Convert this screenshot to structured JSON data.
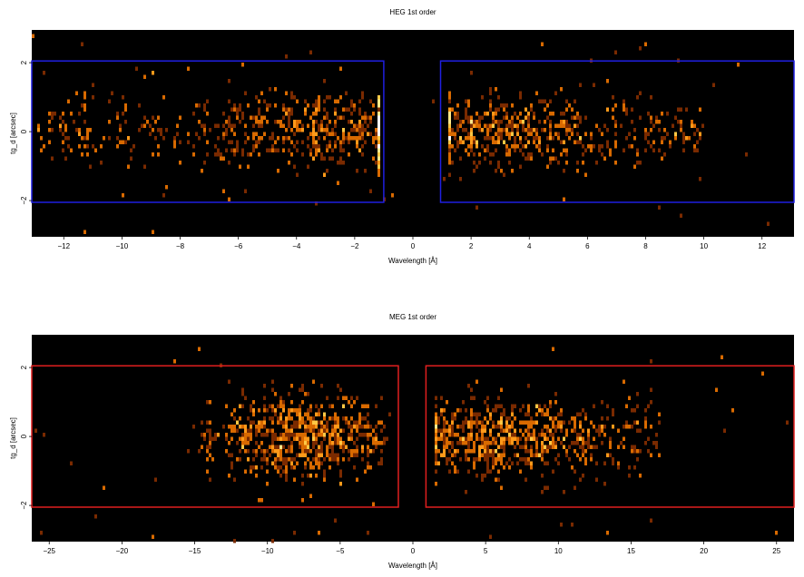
{
  "chart_data": [
    {
      "type": "heatmap",
      "title": "HEG 1st order",
      "xlabel": "Wavelength [Å]",
      "ylabel": "tg_d [arcsec]",
      "xlim": [
        -13.1,
        13.1
      ],
      "ylim": [
        -3.05,
        2.95
      ],
      "xticks": [
        -12,
        -10,
        -8,
        -6,
        -4,
        -2,
        0,
        2,
        4,
        6,
        8,
        10,
        12
      ],
      "yticks": [
        -2,
        0,
        2
      ],
      "xtick_labels": [
        "−12",
        "−10",
        "−8",
        "−6",
        "−4",
        "−2",
        "0",
        "2",
        "4",
        "6",
        "8",
        "10",
        "12"
      ],
      "ytick_labels": [
        "−2",
        "0",
        "2"
      ],
      "background": "#000000",
      "colormap": [
        "#7a2a00",
        "#d96a00",
        "#ff9a1a",
        "#ffc845",
        "#ffe98a",
        "#ffffff"
      ],
      "seed": 7,
      "clusters": [
        {
          "x_min": -13.0,
          "x_max": -1.2,
          "x_peak": -2.5,
          "y_sigma": 0.55,
          "n": 620
        },
        {
          "x_min": 1.3,
          "x_max": 10.0,
          "x_peak": 3.0,
          "y_sigma": 0.5,
          "n": 560
        }
      ],
      "scatter_points": 60,
      "regions": [
        {
          "x_min": -13.1,
          "x_max": -1.0,
          "y_min": -2.05,
          "y_max": 2.05
        },
        {
          "x_min": 0.95,
          "x_max": 13.1,
          "y_min": -2.05,
          "y_max": 2.05
        }
      ],
      "region_color": "#1f1fe0"
    },
    {
      "type": "heatmap",
      "title": "MEG 1st order",
      "xlabel": "Wavelength [Å]",
      "ylabel": "tg_d [arcsec]",
      "xlim": [
        -26.2,
        26.2
      ],
      "ylim": [
        -3.05,
        2.95
      ],
      "xticks": [
        -25,
        -20,
        -15,
        -10,
        -5,
        0,
        5,
        10,
        15,
        20,
        25
      ],
      "yticks": [
        -2,
        0,
        2
      ],
      "xtick_labels": [
        "−25",
        "−20",
        "−15",
        "−10",
        "−5",
        "0",
        "5",
        "10",
        "15",
        "20",
        "25"
      ],
      "ytick_labels": [
        "−2",
        "0",
        "2"
      ],
      "background": "#000000",
      "colormap": [
        "#7a2a00",
        "#d96a00",
        "#ff9a1a",
        "#ffc845",
        "#ffe98a",
        "#ffffff"
      ],
      "seed": 19,
      "clusters": [
        {
          "x_min": -14.5,
          "x_max": -1.5,
          "x_peak": -7.5,
          "y_sigma": 0.6,
          "n": 700
        },
        {
          "x_min": 1.5,
          "x_max": 17.0,
          "x_peak": 6.0,
          "y_sigma": 0.55,
          "n": 700
        }
      ],
      "scatter_points": 45,
      "regions": [
        {
          "x_min": -26.2,
          "x_max": -1.0,
          "y_min": -2.05,
          "y_max": 2.05
        },
        {
          "x_min": 0.9,
          "x_max": 26.2,
          "y_min": -2.05,
          "y_max": 2.05
        }
      ],
      "region_color": "#e01f1f"
    }
  ]
}
